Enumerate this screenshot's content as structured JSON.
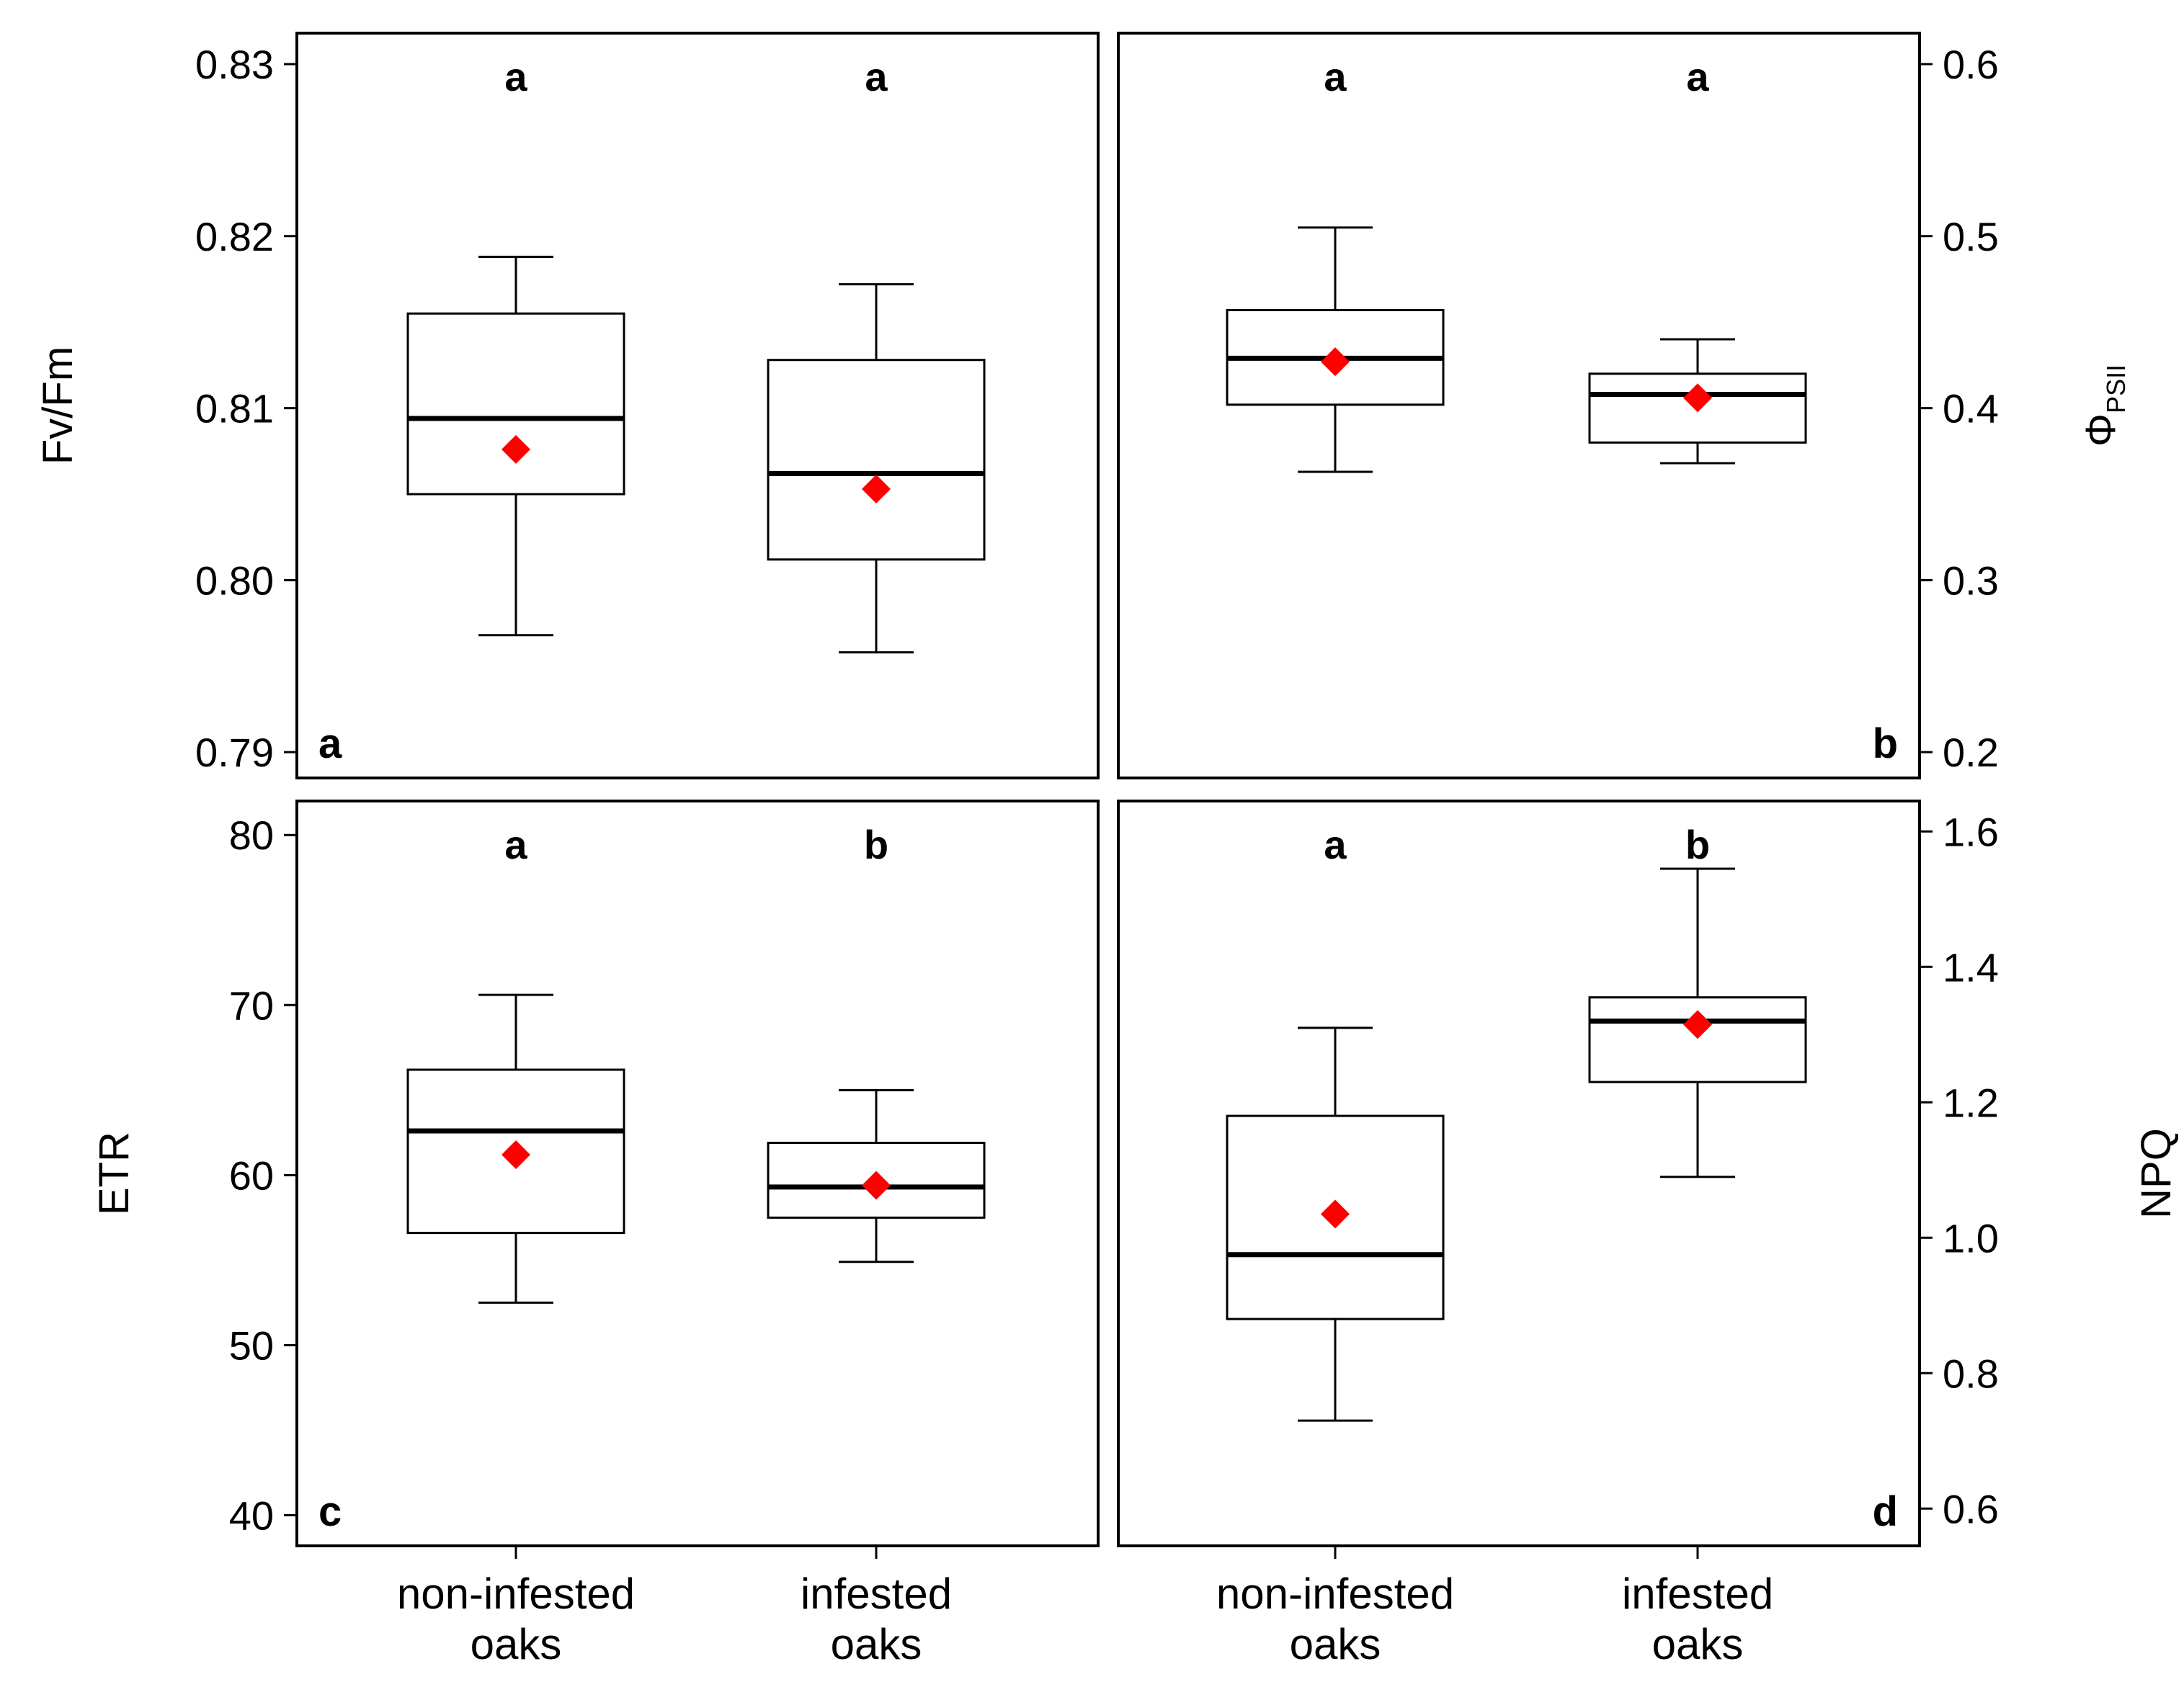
{
  "chart_data": [
    {
      "type": "box",
      "panel_label": "a",
      "ylabel": "Fv/Fm",
      "ylabel_sub": "",
      "yaxis_side": "left",
      "ylim": [
        0.7885,
        0.8318
      ],
      "yticks": [
        0.79,
        0.8,
        0.81,
        0.82,
        0.83
      ],
      "ytick_labels": [
        "0.79",
        "0.80",
        "0.81",
        "0.82",
        "0.83"
      ],
      "categories": [
        "non-infested oaks",
        "infested oaks"
      ],
      "boxes": [
        {
          "category": "non-infested oaks",
          "whisker_low": 0.7968,
          "q1": 0.805,
          "median": 0.8094,
          "q3": 0.8155,
          "whisker_high": 0.8188,
          "mean": 0.8076,
          "letter": "a"
        },
        {
          "category": "infested oaks",
          "whisker_low": 0.7958,
          "q1": 0.8012,
          "median": 0.8062,
          "q3": 0.8128,
          "whisker_high": 0.8172,
          "mean": 0.8053,
          "letter": "a"
        }
      ]
    },
    {
      "type": "box",
      "panel_label": "b",
      "ylabel": "Φ",
      "ylabel_sub": "PSII",
      "yaxis_side": "right",
      "ylim": [
        0.185,
        0.618
      ],
      "yticks": [
        0.2,
        0.3,
        0.4,
        0.5,
        0.6
      ],
      "ytick_labels": [
        "0.2",
        "0.3",
        "0.4",
        "0.5",
        "0.6"
      ],
      "categories": [
        "non-infested oaks",
        "infested oaks"
      ],
      "boxes": [
        {
          "category": "non-infested oaks",
          "whisker_low": 0.363,
          "q1": 0.402,
          "median": 0.429,
          "q3": 0.457,
          "whisker_high": 0.505,
          "mean": 0.427,
          "letter": "a"
        },
        {
          "category": "infested oaks",
          "whisker_low": 0.368,
          "q1": 0.38,
          "median": 0.408,
          "q3": 0.42,
          "whisker_high": 0.44,
          "mean": 0.406,
          "letter": "a"
        }
      ]
    },
    {
      "type": "box",
      "panel_label": "c",
      "ylabel": "ETR",
      "ylabel_sub": "",
      "yaxis_side": "left",
      "ylim": [
        38.2,
        82.0
      ],
      "yticks": [
        40,
        50,
        60,
        70,
        80
      ],
      "ytick_labels": [
        "40",
        "50",
        "60",
        "70",
        "80"
      ],
      "categories": [
        "non-infested oaks",
        "infested oaks"
      ],
      "boxes": [
        {
          "category": "non-infested oaks",
          "whisker_low": 52.5,
          "q1": 56.6,
          "median": 62.6,
          "q3": 66.2,
          "whisker_high": 70.6,
          "mean": 61.2,
          "letter": "a"
        },
        {
          "category": "infested oaks",
          "whisker_low": 54.9,
          "q1": 57.5,
          "median": 59.3,
          "q3": 61.9,
          "whisker_high": 65.0,
          "mean": 59.4,
          "letter": "b"
        }
      ]
    },
    {
      "type": "box",
      "panel_label": "d",
      "ylabel": "NPQ",
      "ylabel_sub": "",
      "yaxis_side": "right",
      "ylim": [
        0.545,
        1.645
      ],
      "yticks": [
        0.6,
        0.8,
        1.0,
        1.2,
        1.4,
        1.6
      ],
      "ytick_labels": [
        "0.6",
        "0.8",
        "1.0",
        "1.2",
        "1.4",
        "1.6"
      ],
      "categories": [
        "non-infested oaks",
        "infested oaks"
      ],
      "boxes": [
        {
          "category": "non-infested oaks",
          "whisker_low": 0.73,
          "q1": 0.88,
          "median": 0.975,
          "q3": 1.18,
          "whisker_high": 1.31,
          "mean": 1.035,
          "letter": "a"
        },
        {
          "category": "infested oaks",
          "whisker_low": 1.09,
          "q1": 1.23,
          "median": 1.32,
          "q3": 1.355,
          "whisker_high": 1.545,
          "mean": 1.315,
          "letter": "b"
        }
      ]
    }
  ],
  "x_axis": {
    "category_labels": [
      {
        "line1": "non-infested",
        "line2": "oaks"
      },
      {
        "line1": "infested",
        "line2": "oaks"
      }
    ]
  },
  "colors": {
    "mean_marker": "#ff0000",
    "box_stroke": "#000000",
    "frame": "#000000"
  }
}
